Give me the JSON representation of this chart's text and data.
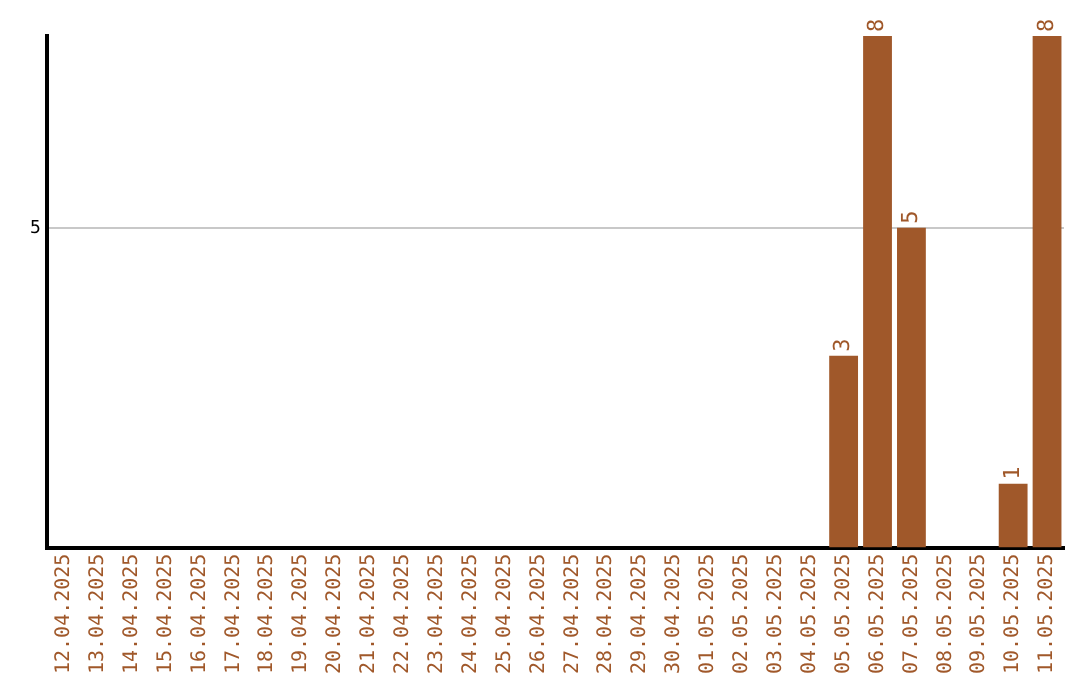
{
  "chart_data": {
    "type": "bar",
    "categories": [
      "12.04.2025",
      "13.04.2025",
      "14.04.2025",
      "15.04.2025",
      "16.04.2025",
      "17.04.2025",
      "18.04.2025",
      "19.04.2025",
      "20.04.2025",
      "21.04.2025",
      "22.04.2025",
      "23.04.2025",
      "24.04.2025",
      "25.04.2025",
      "26.04.2025",
      "27.04.2025",
      "28.04.2025",
      "29.04.2025",
      "30.04.2025",
      "01.05.2025",
      "02.05.2025",
      "03.05.2025",
      "04.05.2025",
      "05.05.2025",
      "06.05.2025",
      "07.05.2025",
      "08.05.2025",
      "09.05.2025",
      "10.05.2025",
      "11.05.2025"
    ],
    "values": [
      null,
      null,
      null,
      null,
      null,
      null,
      null,
      null,
      null,
      null,
      null,
      null,
      null,
      null,
      null,
      null,
      null,
      null,
      null,
      null,
      null,
      null,
      null,
      3,
      8,
      5,
      null,
      null,
      1,
      8
    ],
    "value_labels": [
      null,
      null,
      null,
      null,
      null,
      null,
      null,
      null,
      null,
      null,
      null,
      null,
      null,
      null,
      null,
      null,
      null,
      null,
      null,
      null,
      null,
      null,
      null,
      "3",
      "8",
      "5",
      null,
      null,
      "1",
      "8"
    ],
    "color": "#a0582a",
    "ylim": [
      0,
      8
    ],
    "yticks": [
      5
    ],
    "grid": "y",
    "legend": false
  }
}
